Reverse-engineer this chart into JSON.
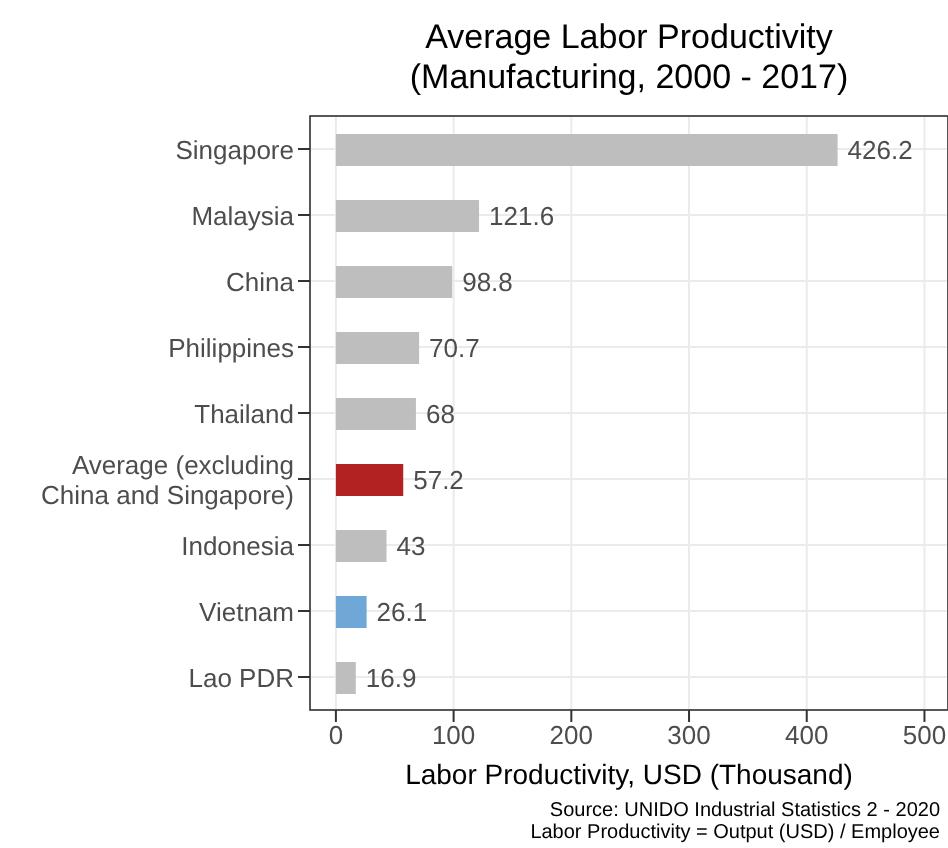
{
  "chart_data": {
    "type": "bar",
    "orientation": "horizontal",
    "title": "Average Labor Productivity\n(Manufacturing, 2000 - 2017)",
    "xlabel": "Labor Productivity, USD (Thousand)",
    "categories": [
      "Singapore",
      "Malaysia",
      "China",
      "Philippines",
      "Thailand",
      "Average (excluding China and Singapore)",
      "Indonesia",
      "Vietnam",
      "Lao PDR"
    ],
    "values": [
      426.2,
      121.6,
      98.8,
      70.7,
      68,
      57.2,
      43,
      26.1,
      16.9
    ],
    "colors": [
      "#bebebe",
      "#bebebe",
      "#bebebe",
      "#bebebe",
      "#bebebe",
      "#b22222",
      "#bebebe",
      "#6fa8d6",
      "#bebebe"
    ],
    "xlim": [
      -22,
      520
    ],
    "xticks": [
      0,
      100,
      200,
      300,
      400,
      500
    ],
    "grid": true,
    "data_labels": true,
    "annotations": [
      "Source: UNIDO Industrial Statistics 2 - 2020",
      "Labor Productivity = Output (USD) / Employee"
    ]
  }
}
